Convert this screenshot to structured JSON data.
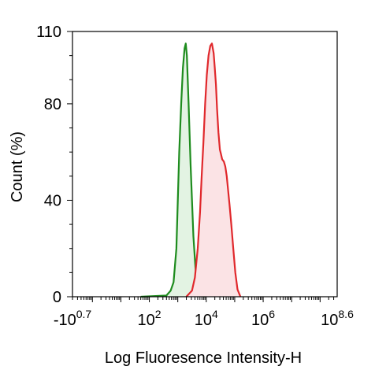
{
  "chart_data": {
    "type": "area",
    "xlabel": "Log Fluoresence Intensity-H",
    "ylabel": "Count  (%)",
    "x_scale": "log",
    "xlim_exponent": [
      -0.7,
      8.6
    ],
    "ylim": [
      0,
      110
    ],
    "y_ticks": [
      {
        "value": 0,
        "label": "0"
      },
      {
        "value": 40,
        "label": "40"
      },
      {
        "value": 80,
        "label": "80"
      },
      {
        "value": 110,
        "label": "110"
      }
    ],
    "x_ticks": [
      {
        "exponent": -0.7,
        "base": "-10",
        "sup": "0.7"
      },
      {
        "exponent": 2,
        "base": "10",
        "sup": "2"
      },
      {
        "exponent": 4,
        "base": "10",
        "sup": "4"
      },
      {
        "exponent": 6,
        "base": "10",
        "sup": "6"
      },
      {
        "exponent": 8.6,
        "base": "10",
        "sup": "8.6"
      }
    ],
    "grid": false,
    "legend": "none",
    "series": [
      {
        "color": "#1e8c1e",
        "fill": "#e3f3e3",
        "points": [
          [
            1.7,
            0
          ],
          [
            2.6,
            0.5
          ],
          [
            2.75,
            2.5
          ],
          [
            2.85,
            6
          ],
          [
            2.95,
            20
          ],
          [
            3.0,
            40
          ],
          [
            3.05,
            60
          ],
          [
            3.12,
            80
          ],
          [
            3.18,
            95
          ],
          [
            3.24,
            103
          ],
          [
            3.28,
            105
          ],
          [
            3.32,
            100
          ],
          [
            3.38,
            80
          ],
          [
            3.45,
            55
          ],
          [
            3.5,
            40
          ],
          [
            3.55,
            25
          ],
          [
            3.62,
            12
          ],
          [
            3.7,
            4
          ],
          [
            3.8,
            1
          ],
          [
            3.95,
            0
          ]
        ]
      },
      {
        "color": "#e0282c",
        "fill": "#fbe3e5",
        "points": [
          [
            3.3,
            0
          ],
          [
            3.5,
            2.5
          ],
          [
            3.6,
            8
          ],
          [
            3.7,
            20
          ],
          [
            3.78,
            35
          ],
          [
            3.84,
            50
          ],
          [
            3.9,
            64
          ],
          [
            3.96,
            80
          ],
          [
            4.02,
            92
          ],
          [
            4.08,
            100
          ],
          [
            4.14,
            104
          ],
          [
            4.2,
            105
          ],
          [
            4.26,
            101
          ],
          [
            4.3,
            95
          ],
          [
            4.34,
            88
          ],
          [
            4.38,
            78
          ],
          [
            4.43,
            68
          ],
          [
            4.48,
            61
          ],
          [
            4.52,
            59
          ],
          [
            4.56,
            57
          ],
          [
            4.62,
            56
          ],
          [
            4.67,
            54
          ],
          [
            4.72,
            50
          ],
          [
            4.77,
            44
          ],
          [
            4.82,
            38
          ],
          [
            4.88,
            30
          ],
          [
            4.95,
            20
          ],
          [
            5.02,
            10
          ],
          [
            5.1,
            3
          ],
          [
            5.2,
            0
          ]
        ]
      }
    ]
  }
}
